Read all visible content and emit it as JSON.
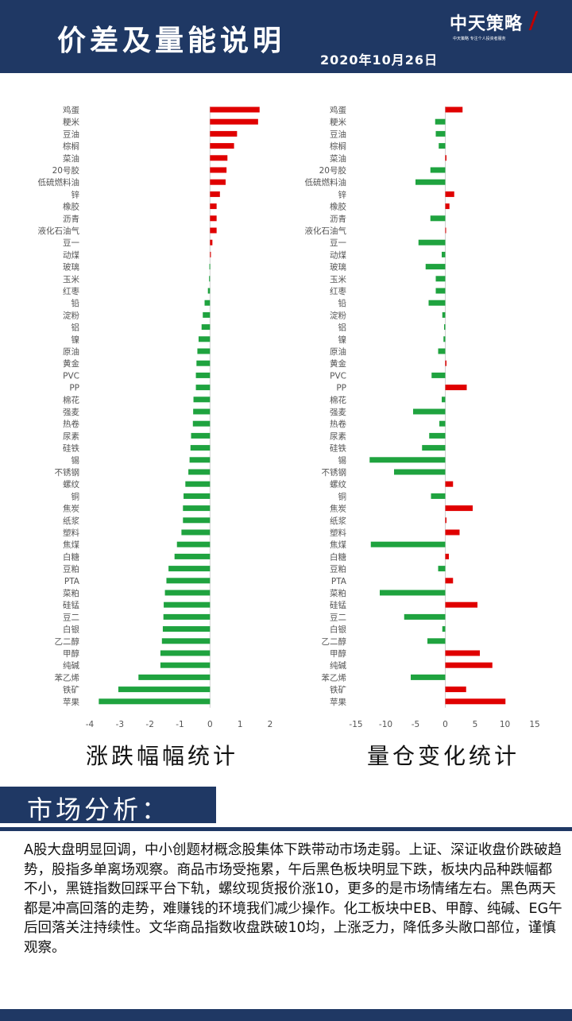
{
  "header": {
    "title": "价差及量能说明",
    "date": "2020年10月26日",
    "logo_name": "中天策略",
    "logo_sub": "中天策略   专注个人投资者服务"
  },
  "captions": {
    "left": "涨跌幅幅统计",
    "right": "量仓变化统计"
  },
  "section": {
    "title": "市场分析："
  },
  "analysis": {
    "text": "A股大盘明显回调，中小创题材概念股集体下跌带动市场走弱。上证、深证收盘价跌破趋势，股指多单离场观察。商品市场受拖累，午后黑色板块明显下跌，板块内品种跌幅都不小，黑链指数回踩平台下轨，螺纹现货报价涨10，更多的是市场情绪左右。黑色两天都是冲高回落的走势，难赚钱的环境我们减少操作。化工板块中EB、甲醇、纯碱、EG午后回落关注持续性。文华商品指数收盘跌破10均，上涨乏力，降低多头敞口部位，谨慎观察。"
  },
  "colors": {
    "navy": "#1f3864",
    "up": "#e00000",
    "down": "#1fa33f"
  },
  "chart_data": [
    {
      "type": "bar",
      "orientation": "horizontal",
      "caption": "涨跌幅幅统计",
      "categories": [
        "鸡蛋",
        "粳米",
        "豆油",
        "棕榈",
        "菜油",
        "20号胶",
        "低硫燃料油",
        "锌",
        "橡胶",
        "沥青",
        "液化石油气",
        "豆一",
        "动煤",
        "玻璃",
        "玉米",
        "红枣",
        "铅",
        "淀粉",
        "铝",
        "镍",
        "原油",
        "黄金",
        "PVC",
        "PP",
        "棉花",
        "强麦",
        "热卷",
        "尿素",
        "硅铁",
        "锡",
        "不锈钢",
        "螺纹",
        "铜",
        "焦炭",
        "纸浆",
        "塑料",
        "焦煤",
        "白糖",
        "豆粕",
        "PTA",
        "菜粕",
        "硅锰",
        "豆二",
        "白银",
        "乙二醇",
        "甲醇",
        "纯碱",
        "苯乙烯",
        "铁矿",
        "苹果"
      ],
      "values": [
        1.65,
        1.6,
        0.9,
        0.8,
        0.58,
        0.55,
        0.52,
        0.33,
        0.22,
        0.22,
        0.22,
        0.08,
        0.03,
        -0.02,
        -0.03,
        -0.07,
        -0.18,
        -0.24,
        -0.28,
        -0.38,
        -0.42,
        -0.45,
        -0.47,
        -0.47,
        -0.55,
        -0.56,
        -0.57,
        -0.63,
        -0.65,
        -0.68,
        -0.72,
        -0.82,
        -0.88,
        -0.9,
        -0.9,
        -0.95,
        -1.1,
        -1.18,
        -1.38,
        -1.45,
        -1.5,
        -1.54,
        -1.55,
        -1.57,
        -1.6,
        -1.65,
        -1.65,
        -2.38,
        -3.05,
        -3.7
      ],
      "xlim": [
        -4,
        2
      ],
      "xticks": [
        "-4",
        "-3",
        "-2",
        "-1",
        "0",
        "1",
        "2"
      ],
      "grid": false
    },
    {
      "type": "bar",
      "orientation": "horizontal",
      "caption": "量仓变化统计",
      "categories": [
        "鸡蛋",
        "粳米",
        "豆油",
        "棕榈",
        "菜油",
        "20号胶",
        "低硫燃料油",
        "锌",
        "橡胶",
        "沥青",
        "液化石油气",
        "豆一",
        "动煤",
        "玻璃",
        "玉米",
        "红枣",
        "铅",
        "淀粉",
        "铝",
        "镍",
        "原油",
        "黄金",
        "PVC",
        "PP",
        "棉花",
        "强麦",
        "热卷",
        "尿素",
        "硅铁",
        "锡",
        "不锈钢",
        "螺纹",
        "铜",
        "焦炭",
        "纸浆",
        "塑料",
        "焦煤",
        "白糖",
        "豆粕",
        "PTA",
        "菜粕",
        "硅锰",
        "豆二",
        "白银",
        "乙二醇",
        "甲醇",
        "纯碱",
        "苯乙烯",
        "铁矿",
        "苹果"
      ],
      "values": [
        2.9,
        -1.7,
        -1.6,
        -1.1,
        0.2,
        -2.5,
        -5.0,
        1.5,
        0.7,
        -2.5,
        0.1,
        -4.5,
        -0.6,
        -3.3,
        -1.6,
        -1.6,
        -2.8,
        -0.5,
        -0.2,
        -0.3,
        -1.2,
        0.2,
        -2.3,
        3.6,
        -0.6,
        -5.4,
        -1.0,
        -2.7,
        -3.9,
        -12.7,
        -8.6,
        1.3,
        -2.4,
        4.6,
        0.2,
        2.4,
        -12.5,
        0.6,
        -1.2,
        1.3,
        -11.0,
        5.4,
        -6.9,
        -0.5,
        -3.0,
        5.8,
        7.9,
        -5.8,
        3.5,
        10.1
      ],
      "xlim": [
        -15,
        15
      ],
      "xticks": [
        "-15",
        "-10",
        "-5",
        "0",
        "5",
        "10",
        "15"
      ],
      "grid": false
    }
  ]
}
